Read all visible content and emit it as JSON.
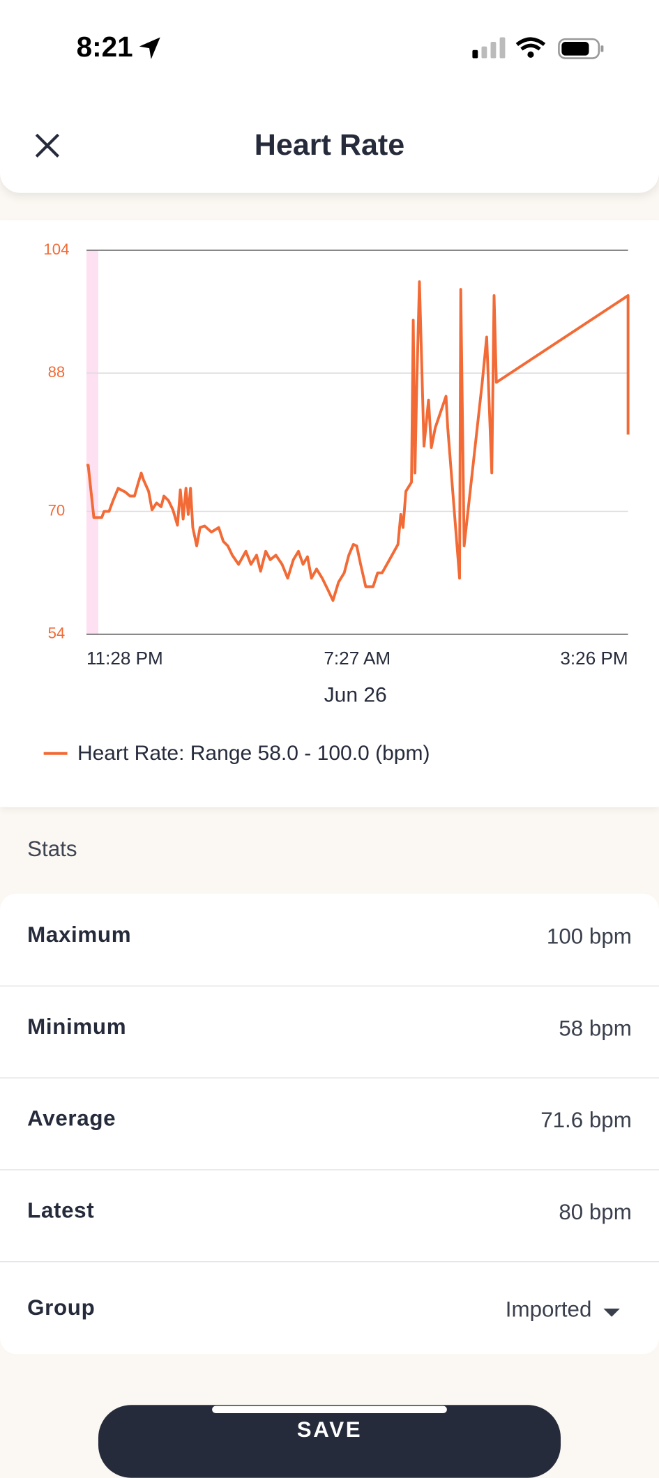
{
  "status_bar": {
    "time": "8:21"
  },
  "header": {
    "title": "Heart Rate"
  },
  "chart_data": {
    "type": "line",
    "x_label": "Jun 26",
    "xlim": [
      0,
      958
    ],
    "xticks": [
      {
        "value": 0,
        "label": "11:28 PM"
      },
      {
        "value": 479,
        "label": "7:27 AM"
      },
      {
        "value": 958,
        "label": "3:26 PM"
      }
    ],
    "ylim": [
      54,
      104
    ],
    "yticks": [
      54,
      70,
      88,
      104
    ],
    "grid": true,
    "x": [
      0,
      3,
      13,
      27,
      31,
      40,
      47,
      56,
      69,
      77,
      85,
      92,
      97,
      101,
      110,
      116,
      124,
      132,
      137,
      145,
      153,
      161,
      166,
      171,
      176,
      180,
      184,
      188,
      195,
      201,
      209,
      221,
      234,
      242,
      250,
      258,
      269,
      282,
      291,
      301,
      308,
      317,
      325,
      335,
      346,
      356,
      366,
      375,
      383,
      391,
      398,
      407,
      417,
      427,
      436,
      446,
      456,
      464,
      472,
      478,
      485,
      494,
      507,
      515,
      523,
      536,
      551,
      556,
      560,
      565,
      575,
      578,
      581,
      584,
      589,
      597,
      605,
      610,
      617,
      636,
      639,
      660,
      662,
      668,
      700,
      708,
      717,
      721,
      725,
      958,
      958
    ],
    "series": [
      {
        "name": "Heart Rate: Range 58.0 - 100.0 (bpm)",
        "color": "#f26a35",
        "values": [
          76,
          76,
          69.2,
          69.2,
          70,
          70,
          71.4,
          73,
          72.5,
          72,
          72,
          73.8,
          75,
          74.1,
          72.6,
          70.2,
          71.1,
          70.6,
          72,
          71.4,
          70.2,
          68.2,
          72.8,
          69,
          73,
          69.6,
          73,
          67.9,
          65.5,
          67.9,
          68.1,
          67.3,
          67.9,
          66.1,
          65.5,
          64.3,
          63.1,
          64.8,
          63.1,
          64.3,
          62.2,
          64.8,
          63.7,
          64.3,
          63.1,
          61.3,
          63.7,
          64.8,
          63.1,
          64.1,
          61.3,
          62.5,
          61.3,
          59.8,
          58.4,
          60.8,
          62,
          64.3,
          65.7,
          65.5,
          63.1,
          60.2,
          60.2,
          62,
          62,
          63.7,
          65.7,
          69.6,
          67.9,
          72.6,
          73.8,
          94.9,
          75,
          85.6,
          99.9,
          78.5,
          84.5,
          78.3,
          80.9,
          85,
          80.9,
          61.3,
          98.9,
          65.5,
          86.8,
          92.7,
          75,
          98.1,
          86.8,
          98.1,
          80
        ]
      }
    ]
  },
  "stats": {
    "title": "Stats",
    "rows": [
      {
        "label": "Maximum",
        "value": "100 bpm"
      },
      {
        "label": "Minimum",
        "value": "58 bpm"
      },
      {
        "label": "Average",
        "value": "71.6 bpm"
      },
      {
        "label": "Latest",
        "value": "80 bpm"
      }
    ]
  },
  "group": {
    "label": "Group",
    "value": "Imported"
  },
  "save_button": {
    "label": "SAVE"
  }
}
